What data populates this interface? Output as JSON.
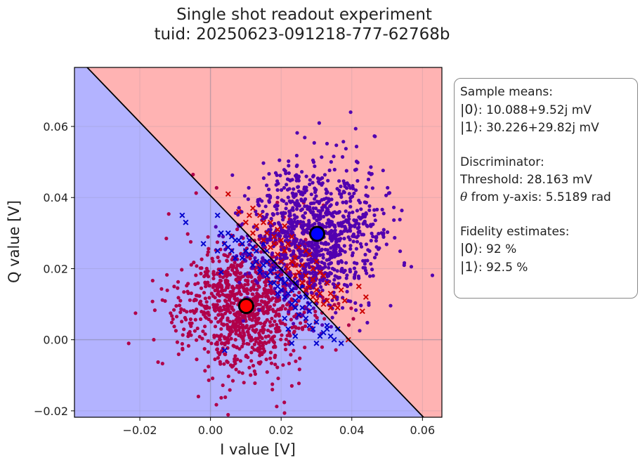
{
  "chart_data": {
    "type": "scatter",
    "title_lines": [
      "Single shot readout experiment",
      "tuid: 20250623-091218-777-62768b"
    ],
    "xlabel": "I value [V]",
    "ylabel": "Q value [V]",
    "xlim": [
      -0.0385,
      0.0655
    ],
    "ylim": [
      -0.0218,
      0.0766
    ],
    "xticks": [
      -0.02,
      0.0,
      0.02,
      0.04,
      0.06
    ],
    "xtick_labels": [
      "−0.02",
      "0.00",
      "0.02",
      "0.04",
      "0.06"
    ],
    "yticks": [
      -0.02,
      0.0,
      0.02,
      0.04,
      0.06
    ],
    "ytick_labels": [
      "−0.02",
      "0.00",
      "0.02",
      "0.04",
      "0.06"
    ],
    "grid": true,
    "regions": {
      "state0_color": "#b3b3ff",
      "state1_color": "#ffb3b3"
    },
    "decision_boundary": {
      "x": [
        -0.0349,
        0.0603
      ],
      "y": [
        0.0766,
        -0.0218
      ]
    },
    "series": [
      {
        "color": "#b0004a",
        "marker": "dot",
        "center": [
          0.0101,
          0.0095
        ],
        "spread": [
          0.0096,
          0.0098
        ],
        "count": 1050
      },
      {
        "color": "#5200b0",
        "marker": "dot",
        "center": [
          0.0302,
          0.0298
        ],
        "spread": [
          0.0094,
          0.0098
        ],
        "count": 1050
      },
      {
        "color": "#0000cc",
        "marker": "x",
        "points": [
          [
            -0.008,
            0.035
          ],
          [
            -0.007,
            0.033
          ],
          [
            -0.002,
            0.027
          ],
          [
            0.002,
            0.035
          ],
          [
            0.003,
            0.03
          ],
          [
            0.004,
            0.027
          ],
          [
            0.005,
            0.026
          ],
          [
            0.006,
            0.025
          ],
          [
            0.005,
            0.03
          ],
          [
            0.007,
            0.028
          ],
          [
            0.008,
            0.028
          ],
          [
            0.009,
            0.027
          ],
          [
            0.01,
            0.025
          ],
          [
            0.011,
            0.024
          ],
          [
            0.012,
            0.026
          ],
          [
            0.013,
            0.022
          ],
          [
            0.013,
            0.025
          ],
          [
            0.014,
            0.02
          ],
          [
            0.015,
            0.021
          ],
          [
            0.016,
            0.018
          ],
          [
            0.016,
            0.022
          ],
          [
            0.017,
            0.019
          ],
          [
            0.018,
            0.016
          ],
          [
            0.018,
            0.02
          ],
          [
            0.019,
            0.015
          ],
          [
            0.019,
            0.018
          ],
          [
            0.02,
            0.014
          ],
          [
            0.02,
            0.017
          ],
          [
            0.021,
            0.016
          ],
          [
            0.021,
            0.012
          ],
          [
            0.022,
            0.013
          ],
          [
            0.022,
            0.017
          ],
          [
            0.023,
            0.01
          ],
          [
            0.023,
            0.014
          ],
          [
            0.024,
            0.011
          ],
          [
            0.024,
            0.009
          ],
          [
            0.025,
            0.012
          ],
          [
            0.025,
            0.007
          ],
          [
            0.026,
            0.009
          ],
          [
            0.027,
            0.006
          ],
          [
            0.028,
            0.008
          ],
          [
            0.028,
            0.004
          ],
          [
            0.029,
            0.003
          ],
          [
            0.03,
            0.005
          ],
          [
            0.031,
            0.001
          ],
          [
            0.032,
            0.002
          ],
          [
            0.033,
            0.003
          ],
          [
            0.034,
            0.001
          ],
          [
            0.035,
            0.0
          ],
          [
            0.036,
            0.003
          ],
          [
            0.037,
            -0.001
          ],
          [
            0.022,
            0.003
          ],
          [
            0.023,
            -0.001
          ],
          [
            0.024,
            0.001
          ],
          [
            0.03,
            -0.001
          ],
          [
            0.026,
            0.015
          ],
          [
            0.019,
            0.013
          ],
          [
            0.017,
            0.016
          ],
          [
            0.015,
            0.027
          ],
          [
            0.016,
            0.025
          ],
          [
            0.011,
            0.028
          ],
          [
            0.004,
            -0.003
          ],
          [
            0.021,
            0.006
          ],
          [
            0.02,
            0.02
          ],
          [
            0.024,
            0.016
          ],
          [
            0.027,
            0.012
          ],
          [
            0.014,
            0.019
          ],
          [
            0.009,
            0.023
          ],
          [
            0.012,
            0.021
          ],
          [
            0.018,
            0.022
          ],
          [
            0.006,
            0.029
          ],
          [
            0.007,
            0.023
          ],
          [
            0.003,
            0.019
          ],
          [
            0.002,
            0.025
          ],
          [
            0.033,
            0.004
          ],
          [
            0.028,
            0.01
          ]
        ]
      },
      {
        "color": "#cc0000",
        "marker": "x",
        "points": [
          [
            0.005,
            0.041
          ],
          [
            0.008,
            0.036
          ],
          [
            0.01,
            0.033
          ],
          [
            0.011,
            0.035
          ],
          [
            0.012,
            0.03
          ],
          [
            0.013,
            0.032
          ],
          [
            0.014,
            0.035
          ],
          [
            0.015,
            0.028
          ],
          [
            0.016,
            0.03
          ],
          [
            0.017,
            0.026
          ],
          [
            0.018,
            0.027
          ],
          [
            0.019,
            0.031
          ],
          [
            0.019,
            0.024
          ],
          [
            0.02,
            0.022
          ],
          [
            0.021,
            0.025
          ],
          [
            0.022,
            0.027
          ],
          [
            0.022,
            0.02
          ],
          [
            0.023,
            0.022
          ],
          [
            0.024,
            0.018
          ],
          [
            0.024,
            0.023
          ],
          [
            0.025,
            0.019
          ],
          [
            0.026,
            0.016
          ],
          [
            0.026,
            0.021
          ],
          [
            0.027,
            0.014
          ],
          [
            0.027,
            0.018
          ],
          [
            0.028,
            0.015
          ],
          [
            0.029,
            0.012
          ],
          [
            0.029,
            0.017
          ],
          [
            0.03,
            0.011
          ],
          [
            0.03,
            0.014
          ],
          [
            0.031,
            0.013
          ],
          [
            0.032,
            0.01
          ],
          [
            0.033,
            0.011
          ],
          [
            0.034,
            0.009
          ],
          [
            0.035,
            0.012
          ],
          [
            0.036,
            0.009
          ],
          [
            0.037,
            0.014
          ],
          [
            0.038,
            0.011
          ],
          [
            0.042,
            0.015
          ],
          [
            0.044,
            0.012
          ],
          [
            0.043,
            0.008
          ],
          [
            0.039,
            0.0
          ],
          [
            0.033,
            0.016
          ],
          [
            0.028,
            0.024
          ],
          [
            0.025,
            0.026
          ],
          [
            0.03,
            0.022
          ],
          [
            0.023,
            0.029
          ],
          [
            0.021,
            0.032
          ],
          [
            0.017,
            0.033
          ],
          [
            0.02,
            0.028
          ],
          [
            0.029,
            0.02
          ],
          [
            0.032,
            0.018
          ],
          [
            0.027,
            0.025
          ],
          [
            0.012,
            0.037
          ],
          [
            0.015,
            0.033
          ],
          [
            0.018,
            0.029
          ],
          [
            0.024,
            0.021
          ],
          [
            0.036,
            0.015
          ],
          [
            0.034,
            0.013
          ],
          [
            0.031,
            0.019
          ]
        ]
      },
      {
        "color": "#ff0000",
        "marker": "mean",
        "points": [
          [
            0.0101,
            0.0095
          ]
        ]
      },
      {
        "color": "#0000ff",
        "marker": "mean",
        "points": [
          [
            0.0302,
            0.0298
          ]
        ]
      }
    ]
  },
  "infobox": {
    "sample_means_title": "Sample means:",
    "state0_ket": "|0⟩",
    "state0_mean": ": 10.088+9.52j mV",
    "state1_ket": "|1⟩",
    "state1_mean": ": 30.226+29.82j mV",
    "discriminator_title": "Discriminator:",
    "threshold": "Threshold: 28.163 mV",
    "theta_symbol": "θ",
    "theta_text": " from y-axis: 5.5189 rad",
    "fidelity_title": "Fidelity estimates:",
    "fid0_ket": "|0⟩",
    "fid0_value": ": 92 %",
    "fid1_ket": "|1⟩",
    "fid1_value": ": 92.5 %"
  }
}
